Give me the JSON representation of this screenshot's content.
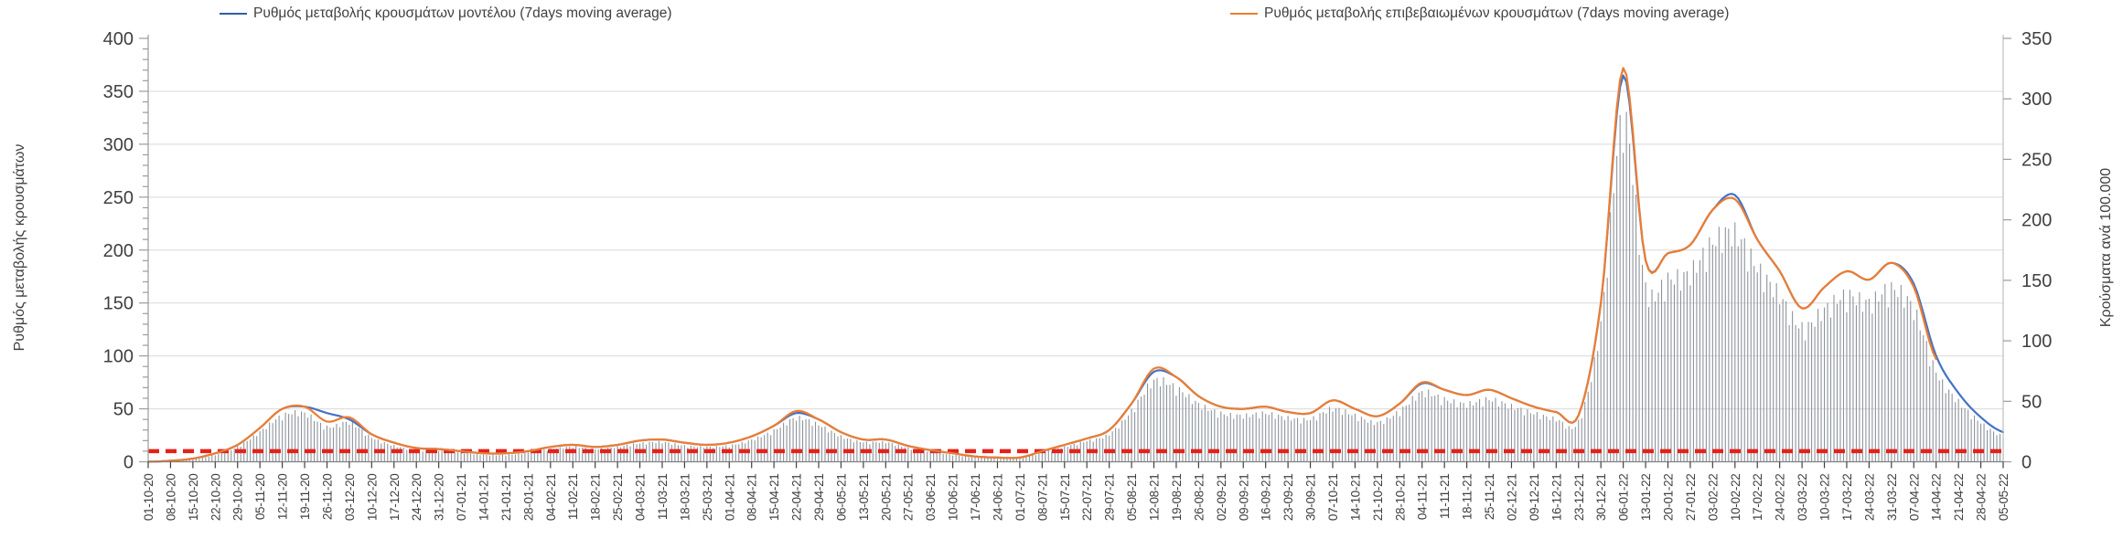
{
  "chart_data": {
    "type": "line",
    "title": "",
    "legend_position": "top",
    "grid": true,
    "legend": [
      {
        "label": "Ρυθμός μεταβολής κρουσμάτων μοντέλου (7days moving average)",
        "color": "#2E5EA6"
      },
      {
        "label": "Ρυθμός μεταβολής επιβεβαιωμένων κρουσμάτων (7days moving average)",
        "color": "#ED7D31"
      }
    ],
    "left_axis": {
      "title": "Ρυθμός μεταβολής κρουσμάτων",
      "min": 0,
      "max": 400,
      "tick_step": 50,
      "minor_tick_step": 10
    },
    "right_axis": {
      "title": "Κρούσματα ανά 100.000",
      "min": 0,
      "max": 350,
      "tick_step": 50
    },
    "x_labels": [
      "01-10-20",
      "08-10-20",
      "15-10-20",
      "22-10-20",
      "29-10-20",
      "05-11-20",
      "12-11-20",
      "19-11-20",
      "26-11-20",
      "03-12-20",
      "10-12-20",
      "17-12-20",
      "24-12-20",
      "31-12-20",
      "07-01-21",
      "14-01-21",
      "21-01-21",
      "28-01-21",
      "04-02-21",
      "11-02-21",
      "18-02-21",
      "25-02-21",
      "04-03-21",
      "11-03-21",
      "18-03-21",
      "25-03-21",
      "01-04-21",
      "08-04-21",
      "15-04-21",
      "22-04-21",
      "29-04-21",
      "06-05-21",
      "13-05-21",
      "20-05-21",
      "27-05-21",
      "03-06-21",
      "10-06-21",
      "17-06-21",
      "24-06-21",
      "01-07-21",
      "08-07-21",
      "15-07-21",
      "22-07-21",
      "29-07-21",
      "05-08-21",
      "12-08-21",
      "19-08-21",
      "26-08-21",
      "02-09-21",
      "09-09-21",
      "16-09-21",
      "23-09-21",
      "30-09-21",
      "07-10-21",
      "14-10-21",
      "21-10-21",
      "28-10-21",
      "04-11-21",
      "11-11-21",
      "18-11-21",
      "25-11-21",
      "02-12-21",
      "09-12-21",
      "16-12-21",
      "23-12-21",
      "30-12-21",
      "06-01-22",
      "13-01-22",
      "20-01-22",
      "27-01-22",
      "03-02-22",
      "10-02-22",
      "17-02-22",
      "24-02-22",
      "03-03-22",
      "10-03-22",
      "17-03-22",
      "24-03-22",
      "31-03-22",
      "07-04-22",
      "14-04-22",
      "21-04-22",
      "28-04-22",
      "05-05-22"
    ],
    "series": [
      {
        "name": "model",
        "axis": "left",
        "color": "#4472C4",
        "weekly_values": [
          0,
          1,
          3,
          8,
          16,
          32,
          50,
          52,
          46,
          40,
          26,
          18,
          13,
          12,
          10,
          8,
          8,
          10,
          14,
          16,
          14,
          16,
          20,
          21,
          18,
          16,
          18,
          24,
          34,
          46,
          40,
          28,
          21,
          21,
          15,
          11,
          8,
          5,
          4,
          4,
          10,
          16,
          22,
          30,
          55,
          85,
          80,
          62,
          52,
          50,
          52,
          47,
          46,
          58,
          50,
          43,
          55,
          74,
          68,
          63,
          68,
          60,
          52,
          47,
          44,
          150,
          365,
          190,
          197,
          205,
          238,
          252,
          210,
          180,
          145,
          165,
          180,
          172,
          188,
          168,
          100,
          65,
          42,
          28
        ]
      },
      {
        "name": "confirmed",
        "axis": "left",
        "color": "#ED7D31",
        "weekly_values": [
          0,
          1,
          3,
          8,
          16,
          32,
          50,
          52,
          38,
          42,
          26,
          18,
          13,
          12,
          10,
          8,
          8,
          10,
          14,
          16,
          14,
          16,
          20,
          21,
          18,
          16,
          18,
          24,
          34,
          48,
          40,
          28,
          21,
          21,
          15,
          11,
          8,
          5,
          4,
          4,
          10,
          16,
          22,
          30,
          55,
          88,
          80,
          62,
          52,
          50,
          52,
          47,
          46,
          58,
          50,
          43,
          55,
          75,
          68,
          63,
          68,
          60,
          52,
          47,
          44,
          150,
          372,
          190,
          197,
          205,
          238,
          248,
          210,
          180,
          145,
          165,
          180,
          172,
          188,
          165,
          97,
          null,
          null,
          null
        ]
      }
    ],
    "bars": {
      "name": "daily-cases-per-100000",
      "axis": "right",
      "color": "#8E939B",
      "weekly_values": [
        0,
        1,
        2,
        6,
        13,
        26,
        40,
        42,
        30,
        34,
        21,
        14,
        10,
        10,
        8,
        6,
        6,
        8,
        11,
        13,
        11,
        13,
        16,
        17,
        14,
        13,
        14,
        19,
        27,
        38,
        32,
        22,
        17,
        17,
        12,
        9,
        6,
        4,
        3,
        3,
        8,
        13,
        18,
        24,
        44,
        70,
        64,
        50,
        42,
        40,
        42,
        38,
        37,
        46,
        40,
        34,
        44,
        60,
        54,
        50,
        54,
        48,
        42,
        37,
        35,
        120,
        298,
        152,
        158,
        164,
        190,
        198,
        168,
        144,
        116,
        132,
        144,
        138,
        150,
        132,
        78,
        52,
        34,
        22
      ]
    },
    "threshold_line": {
      "value": 10,
      "axis": "left",
      "color": "#E32219",
      "style": "dashed"
    }
  }
}
